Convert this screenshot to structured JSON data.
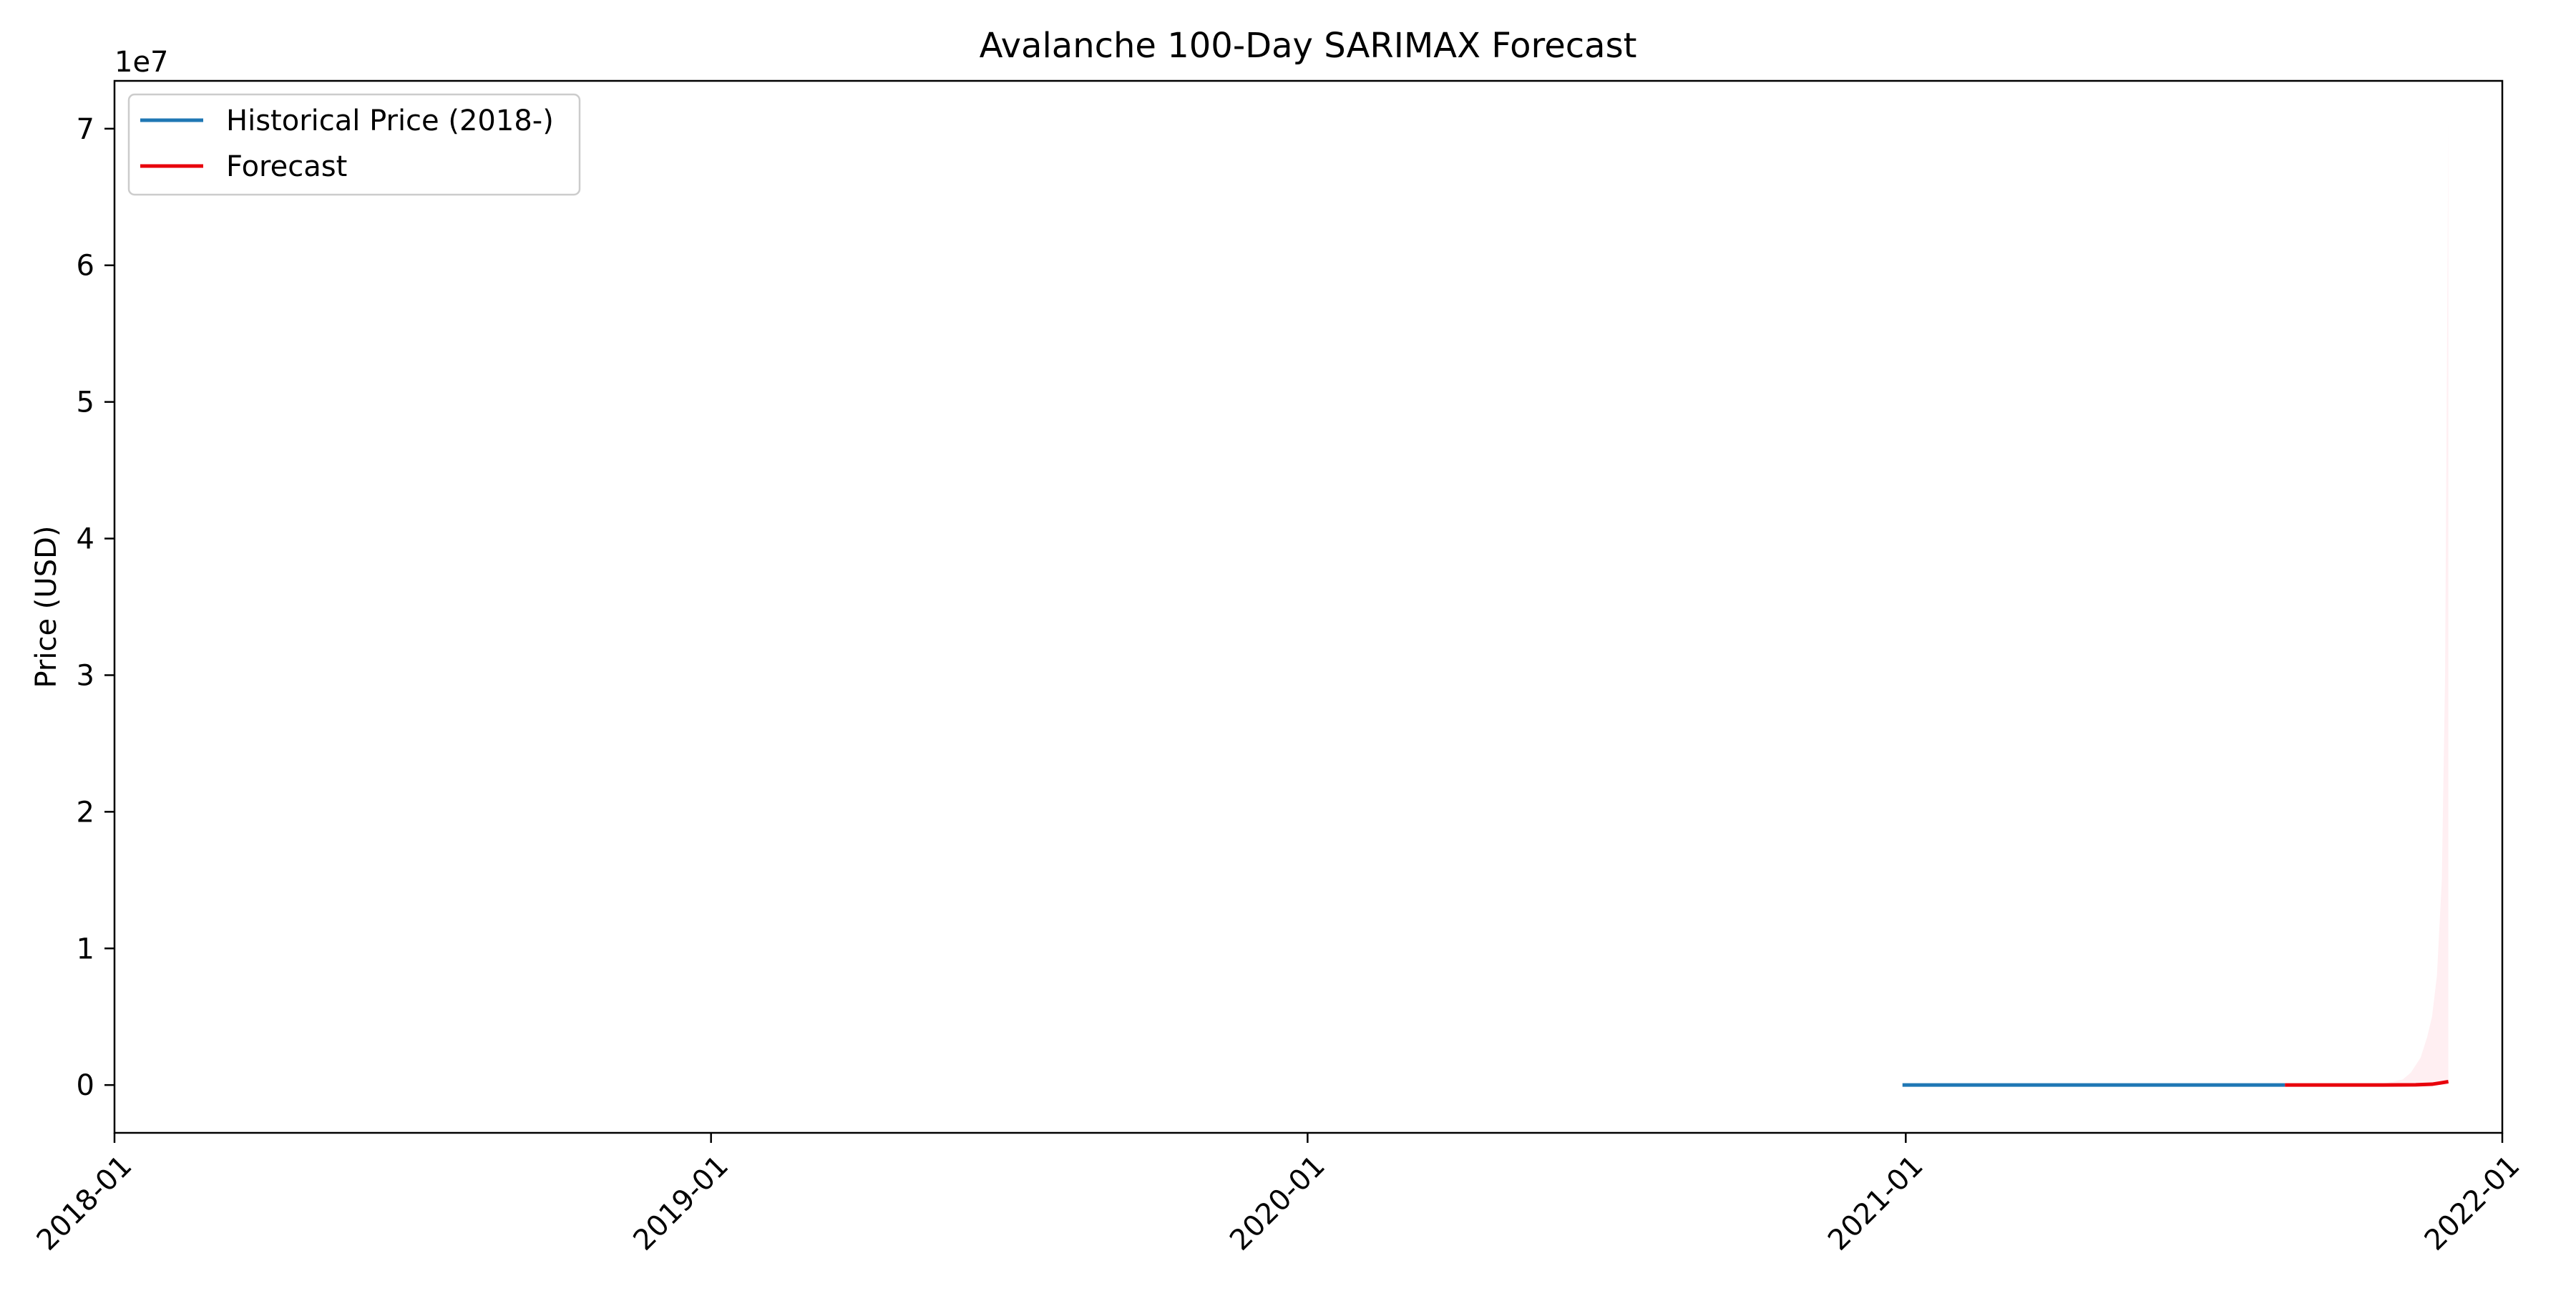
{
  "chart_data": {
    "type": "line",
    "title": "Avalanche 100-Day SARIMAX Forecast",
    "xlabel": "",
    "ylabel": "Price (USD)",
    "y_offset_label": "1e7",
    "xlim": [
      "2018-01-01",
      "2022-01-01"
    ],
    "ylim": [
      -3500000,
      73500000
    ],
    "x_ticks": [
      "2018-01-01",
      "2019-01-01",
      "2020-01-01",
      "2021-01-01",
      "2022-01-01"
    ],
    "x_tick_labels": [
      "2018-01",
      "2019-01",
      "2020-01",
      "2021-01",
      "2022-01"
    ],
    "y_ticks": [
      0,
      10000000,
      20000000,
      30000000,
      40000000,
      50000000,
      60000000,
      70000000
    ],
    "y_tick_labels": [
      "0",
      "1",
      "2",
      "3",
      "4",
      "5",
      "6",
      "7"
    ],
    "grid": false,
    "legend_position": "top-left",
    "series": [
      {
        "name": "Historical Price (2018-)",
        "color": "#1f77b4",
        "x": [
          "2020-12-30",
          "2021-03-01",
          "2021-05-01",
          "2021-07-01",
          "2021-08-21"
        ],
        "y": [
          5,
          15,
          30,
          20,
          55
        ]
      },
      {
        "name": "Forecast",
        "color": "#e8000b",
        "x": [
          "2021-08-21",
          "2021-09-20",
          "2021-10-20",
          "2021-11-09",
          "2021-11-19",
          "2021-11-24",
          "2021-11-29"
        ],
        "y": [
          55,
          300,
          2000,
          15000,
          60000,
          150000,
          250000
        ]
      }
    ],
    "confidence_band": {
      "color": "#ffc0cb",
      "x": [
        "2021-08-21",
        "2021-09-20",
        "2021-10-20",
        "2021-11-01",
        "2021-11-06",
        "2021-11-12",
        "2021-11-16",
        "2021-11-19",
        "2021-11-22",
        "2021-11-25",
        "2021-11-27",
        "2021-11-29"
      ],
      "lower": [
        0,
        0,
        0,
        0,
        0,
        0,
        0,
        0,
        0,
        0,
        0,
        0
      ],
      "upper": [
        60,
        8000,
        90000,
        400000,
        900000,
        2000000,
        3500000,
        5000000,
        8000000,
        15000000,
        30000000,
        70500000
      ]
    }
  }
}
